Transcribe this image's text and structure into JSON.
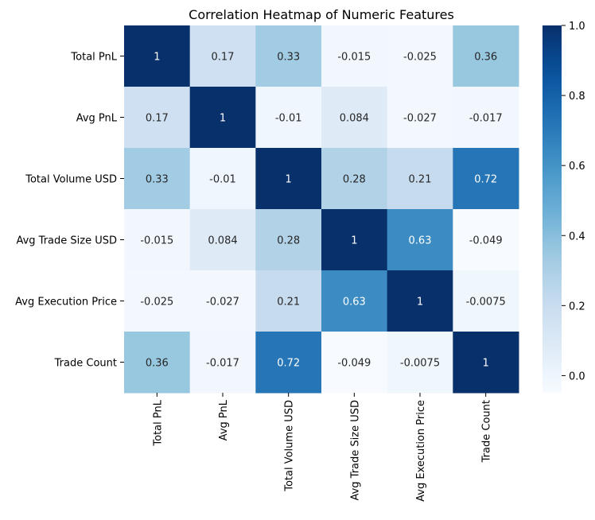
{
  "chart_data": {
    "type": "heatmap",
    "title": "Correlation Heatmap of Numeric Features",
    "xlabel": "",
    "ylabel": "",
    "row_labels": [
      "Total PnL",
      "Avg PnL",
      "Total Volume USD",
      "Avg Trade Size USD",
      "Avg Execution Price",
      "Trade Count"
    ],
    "col_labels": [
      "Total PnL",
      "Avg PnL",
      "Total Volume USD",
      "Avg Trade Size USD",
      "Avg Execution Price",
      "Trade Count"
    ],
    "values": [
      [
        1,
        0.17,
        0.33,
        -0.015,
        -0.025,
        0.36
      ],
      [
        0.17,
        1,
        -0.01,
        0.084,
        -0.027,
        -0.017
      ],
      [
        0.33,
        -0.01,
        1,
        0.28,
        0.21,
        0.72
      ],
      [
        -0.015,
        0.084,
        0.28,
        1,
        0.63,
        -0.049
      ],
      [
        -0.025,
        -0.027,
        0.21,
        0.63,
        1,
        -0.0075
      ],
      [
        0.36,
        -0.017,
        0.72,
        -0.049,
        -0.0075,
        1
      ]
    ],
    "annotations": [
      [
        "1",
        "0.17",
        "0.33",
        "-0.015",
        "-0.025",
        "0.36"
      ],
      [
        "0.17",
        "1",
        "-0.01",
        "0.084",
        "-0.027",
        "-0.017"
      ],
      [
        "0.33",
        "-0.01",
        "1",
        "0.28",
        "0.21",
        "0.72"
      ],
      [
        "-0.015",
        "0.084",
        "0.28",
        "1",
        "0.63",
        "-0.049"
      ],
      [
        "-0.025",
        "-0.027",
        "0.21",
        "0.63",
        "1",
        "-0.0075"
      ],
      [
        "0.36",
        "-0.017",
        "0.72",
        "-0.049",
        "-0.0075",
        "1"
      ]
    ],
    "colormap": "Blues",
    "vmin": -0.049,
    "vmax": 1,
    "colorbar": {
      "ticks": [
        0,
        0.2,
        0.4,
        0.6,
        0.8,
        1
      ],
      "tick_labels": [
        "0.0",
        "0.2",
        "0.4",
        "0.6",
        "0.8",
        "1.0"
      ]
    },
    "grid": false,
    "legend": "colorbar-right"
  }
}
